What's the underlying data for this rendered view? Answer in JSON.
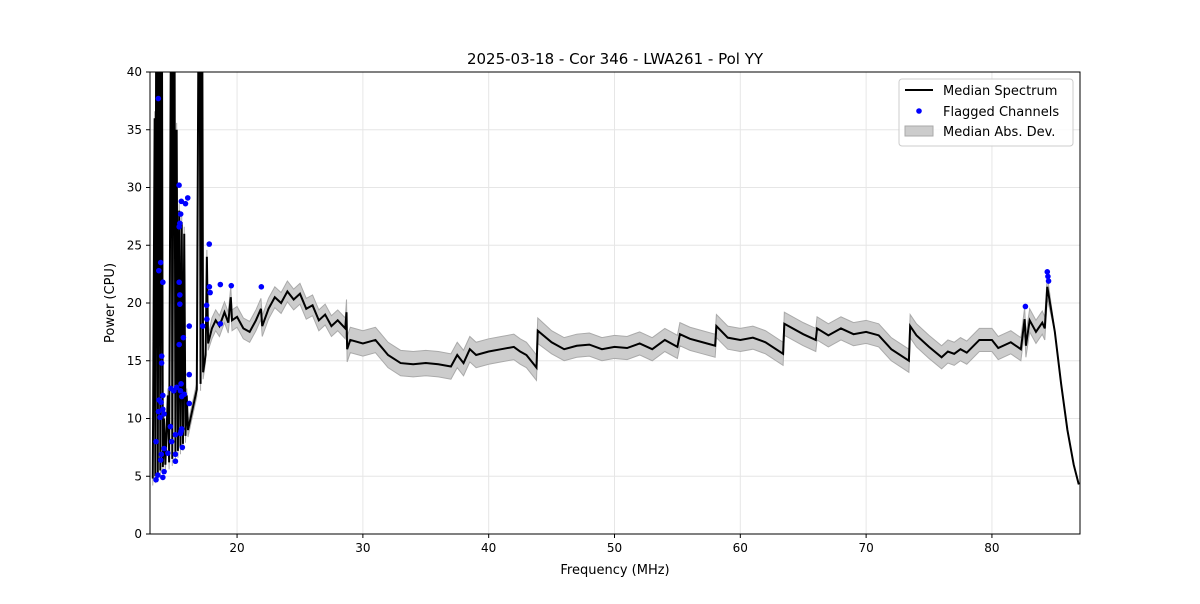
{
  "chart_data": {
    "type": "line",
    "title": "2025-03-18 - Cor 346 - LWA261 - Pol YY",
    "xlabel": "Frequency (MHz)",
    "ylabel": "Power (CPU)",
    "xlim": [
      13.08,
      87.0
    ],
    "ylim": [
      0,
      40
    ],
    "xticks": [
      20,
      30,
      40,
      50,
      60,
      70,
      80
    ],
    "yticks": [
      0,
      5,
      10,
      15,
      20,
      25,
      30,
      35,
      40
    ],
    "grid": true,
    "legend": {
      "placement": "top-right",
      "entries": [
        "Median Spectrum",
        "Flagged Channels",
        "Median Abs. Dev."
      ]
    },
    "colors": {
      "median": "#000000",
      "flagged": "#0000ff",
      "mad": "#cccccc",
      "mad_edge": "#aaaaaa"
    },
    "median_spectrum": [
      [
        13.3,
        4.8
      ],
      [
        13.45,
        36
      ],
      [
        13.5,
        5
      ],
      [
        13.6,
        60
      ],
      [
        13.7,
        5.2
      ],
      [
        13.8,
        60
      ],
      [
        13.9,
        5.5
      ],
      [
        14.0,
        60
      ],
      [
        14.1,
        5.8
      ],
      [
        14.2,
        10
      ],
      [
        14.3,
        6
      ],
      [
        14.5,
        12
      ],
      [
        14.6,
        6.2
      ],
      [
        14.8,
        60
      ],
      [
        14.85,
        6.5
      ],
      [
        15.0,
        60
      ],
      [
        15.1,
        7
      ],
      [
        15.2,
        35
      ],
      [
        15.3,
        7.2
      ],
      [
        15.4,
        28
      ],
      [
        15.5,
        7.5
      ],
      [
        15.6,
        27
      ],
      [
        15.7,
        7.8
      ],
      [
        15.8,
        26
      ],
      [
        15.9,
        8.5
      ],
      [
        16.0,
        12
      ],
      [
        16.1,
        9
      ],
      [
        16.3,
        10
      ],
      [
        16.5,
        11
      ],
      [
        16.8,
        12.5
      ],
      [
        17.0,
        60
      ],
      [
        17.1,
        13
      ],
      [
        17.2,
        60
      ],
      [
        17.3,
        14
      ],
      [
        17.5,
        15.5
      ],
      [
        17.6,
        24
      ],
      [
        17.7,
        16.5
      ],
      [
        18.0,
        17.8
      ],
      [
        18.3,
        18.5
      ],
      [
        18.6,
        18
      ],
      [
        19,
        19.2
      ],
      [
        19.3,
        18.3
      ],
      [
        19.5,
        20.5
      ],
      [
        19.6,
        18.5
      ],
      [
        20,
        18.8
      ],
      [
        20.5,
        17.8
      ],
      [
        21,
        17.5
      ],
      [
        21.5,
        18.5
      ],
      [
        21.9,
        19.5
      ],
      [
        22,
        18
      ],
      [
        22.5,
        19.5
      ],
      [
        23,
        20.5
      ],
      [
        23.5,
        20
      ],
      [
        24,
        21
      ],
      [
        24.5,
        20.3
      ],
      [
        25,
        20.8
      ],
      [
        25.5,
        19.5
      ],
      [
        26,
        19.8
      ],
      [
        26.5,
        18.5
      ],
      [
        27,
        19
      ],
      [
        27.5,
        18
      ],
      [
        28,
        18.5
      ],
      [
        28.6,
        17.8
      ],
      [
        28.7,
        19.2
      ],
      [
        28.75,
        16
      ],
      [
        29,
        16.8
      ],
      [
        30,
        16.5
      ],
      [
        31,
        16.8
      ],
      [
        32,
        15.5
      ],
      [
        33,
        14.8
      ],
      [
        34,
        14.7
      ],
      [
        35,
        14.8
      ],
      [
        36,
        14.7
      ],
      [
        37,
        14.5
      ],
      [
        37.5,
        15.5
      ],
      [
        38,
        14.8
      ],
      [
        38.5,
        16
      ],
      [
        39,
        15.5
      ],
      [
        40,
        15.8
      ],
      [
        41,
        16
      ],
      [
        42,
        16.2
      ],
      [
        42.5,
        15.8
      ],
      [
        43,
        15.5
      ],
      [
        43.8,
        14.4
      ],
      [
        43.9,
        17.6
      ],
      [
        45,
        16.6
      ],
      [
        46,
        16
      ],
      [
        47,
        16.3
      ],
      [
        48,
        16.4
      ],
      [
        49,
        16
      ],
      [
        50,
        16.2
      ],
      [
        51,
        16.1
      ],
      [
        52,
        16.5
      ],
      [
        53,
        16
      ],
      [
        54,
        16.8
      ],
      [
        55,
        16.2
      ],
      [
        55.2,
        17.3
      ],
      [
        56,
        16.9
      ],
      [
        57,
        16.6
      ],
      [
        58,
        16.3
      ],
      [
        58.1,
        18
      ],
      [
        59,
        17
      ],
      [
        60,
        16.8
      ],
      [
        61,
        17
      ],
      [
        62,
        16.6
      ],
      [
        63.4,
        15.6
      ],
      [
        63.5,
        18.2
      ],
      [
        65,
        17.3
      ],
      [
        66,
        16.8
      ],
      [
        66.1,
        17.8
      ],
      [
        67,
        17.2
      ],
      [
        68,
        17.8
      ],
      [
        69,
        17.3
      ],
      [
        70,
        17.5
      ],
      [
        71,
        17.2
      ],
      [
        72,
        16
      ],
      [
        73.4,
        15
      ],
      [
        73.5,
        18
      ],
      [
        74,
        17.2
      ],
      [
        75,
        16.2
      ],
      [
        76,
        15.3
      ],
      [
        76.5,
        15.8
      ],
      [
        77,
        15.6
      ],
      [
        77.5,
        16
      ],
      [
        78,
        15.7
      ],
      [
        79,
        16.8
      ],
      [
        80,
        16.8
      ],
      [
        80.5,
        16.1
      ],
      [
        81.5,
        16.6
      ],
      [
        82.3,
        16
      ],
      [
        82.6,
        18.6
      ],
      [
        82.7,
        16.3
      ],
      [
        83,
        18.5
      ],
      [
        83.5,
        17.5
      ],
      [
        84,
        18.3
      ],
      [
        84.2,
        17.8
      ],
      [
        84.4,
        21.4
      ],
      [
        85,
        17.5
      ],
      [
        85.5,
        13
      ],
      [
        86,
        9
      ],
      [
        86.5,
        6
      ],
      [
        86.9,
        4.3
      ]
    ],
    "mad_segments": [
      {
        "x_from": 13.0,
        "x_to": 18.0,
        "mad": 0.6
      },
      {
        "x_from": 18.0,
        "x_to": 28.7,
        "mad": 0.9
      },
      {
        "x_from": 28.7,
        "x_to": 44.0,
        "mad": 1.1
      },
      {
        "x_from": 44.0,
        "x_to": 84.6,
        "mad": 1.0
      },
      {
        "x_from": 84.6,
        "x_to": 87.0,
        "mad": 0.05
      }
    ],
    "flagged_channels": [
      [
        13.74,
        37.7
      ],
      [
        15.39,
        30.2
      ],
      [
        15.57,
        28.8
      ],
      [
        15.9,
        28.6
      ],
      [
        16.08,
        29.1
      ],
      [
        15.52,
        27.7
      ],
      [
        15.45,
        26.9
      ],
      [
        15.4,
        26.6
      ],
      [
        17.79,
        25.1
      ],
      [
        13.93,
        23.5
      ],
      [
        13.78,
        22.8
      ],
      [
        14.1,
        21.8
      ],
      [
        15.4,
        21.8
      ],
      [
        15.45,
        20.7
      ],
      [
        15.45,
        19.9
      ],
      [
        17.8,
        21.4
      ],
      [
        17.86,
        20.9
      ],
      [
        18.67,
        21.6
      ],
      [
        19.54,
        21.5
      ],
      [
        21.93,
        21.4
      ],
      [
        17.58,
        19.8
      ],
      [
        17.27,
        18.0
      ],
      [
        16.2,
        18.0
      ],
      [
        18.67,
        18.2
      ],
      [
        17.6,
        18.6
      ],
      [
        15.73,
        17.0
      ],
      [
        15.4,
        16.4
      ],
      [
        14.01,
        15.4
      ],
      [
        14.0,
        14.8
      ],
      [
        16.2,
        13.8
      ],
      [
        14.75,
        12.6
      ],
      [
        14.97,
        12.4
      ],
      [
        15.2,
        12.7
      ],
      [
        15.55,
        13.0
      ],
      [
        15.5,
        12.4
      ],
      [
        15.6,
        11.9
      ],
      [
        15.8,
        12.1
      ],
      [
        16.2,
        11.3
      ],
      [
        14.1,
        12.0
      ],
      [
        13.8,
        11.6
      ],
      [
        13.96,
        11.4
      ],
      [
        13.75,
        10.6
      ],
      [
        14.1,
        10.8
      ],
      [
        14.2,
        10.4
      ],
      [
        13.88,
        10.1
      ],
      [
        14.7,
        9.3
      ],
      [
        14.8,
        8.0
      ],
      [
        13.56,
        8.0
      ],
      [
        15.1,
        8.6
      ],
      [
        15.5,
        8.7
      ],
      [
        15.55,
        8.9
      ],
      [
        15.6,
        9.1
      ],
      [
        14.2,
        7.4
      ],
      [
        15.65,
        7.5
      ],
      [
        14.5,
        7.0
      ],
      [
        13.93,
        6.4
      ],
      [
        13.98,
        6.9
      ],
      [
        15.1,
        6.9
      ],
      [
        15.1,
        6.3
      ],
      [
        13.56,
        4.7
      ],
      [
        13.7,
        5.1
      ],
      [
        14.2,
        5.4
      ],
      [
        14.1,
        4.9
      ],
      [
        82.66,
        19.7
      ],
      [
        84.4,
        22.7
      ],
      [
        84.45,
        22.3
      ],
      [
        84.5,
        21.9
      ]
    ]
  }
}
